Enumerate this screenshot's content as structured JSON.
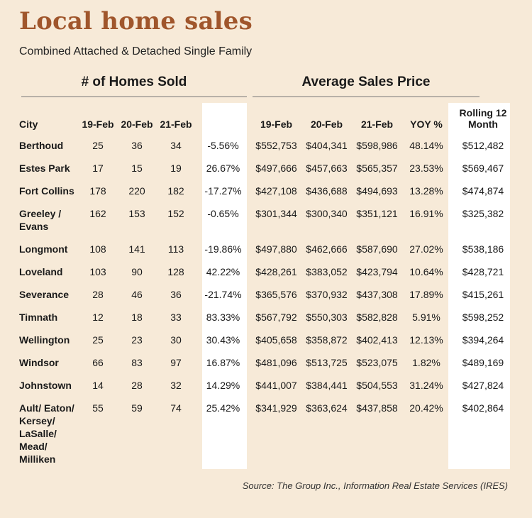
{
  "title": "Local home sales",
  "subtitle": "Combined Attached & Detached Single Family",
  "groups": {
    "homes_sold": "# of Homes Sold",
    "avg_price": "Average Sales Price"
  },
  "columns": {
    "city": "City",
    "h19": "19-Feb",
    "h20": "20-Feb",
    "h21": "21-Feb",
    "yoy1": "",
    "p19": "19-Feb",
    "p20": "20-Feb",
    "p21": "21-Feb",
    "yoy2": "YOY %",
    "roll": "Rolling 12 Month"
  },
  "rows": [
    {
      "city": "Berthoud",
      "h19": "25",
      "h20": "36",
      "h21": "34",
      "yoy1": "-5.56%",
      "p19": "$552,753",
      "p20": "$404,341",
      "p21": "$598,986",
      "yoy2": "48.14%",
      "roll": "$512,482"
    },
    {
      "city": "Estes Park",
      "h19": "17",
      "h20": "15",
      "h21": "19",
      "yoy1": "26.67%",
      "p19": "$497,666",
      "p20": "$457,663",
      "p21": "$565,357",
      "yoy2": "23.53%",
      "roll": "$569,467"
    },
    {
      "city": "Fort Collins",
      "h19": "178",
      "h20": "220",
      "h21": "182",
      "yoy1": "-17.27%",
      "p19": "$427,108",
      "p20": "$436,688",
      "p21": "$494,693",
      "yoy2": "13.28%",
      "roll": "$474,874"
    },
    {
      "city": "Greeley / Evans",
      "h19": "162",
      "h20": "153",
      "h21": "152",
      "yoy1": "-0.65%",
      "p19": "$301,344",
      "p20": "$300,340",
      "p21": "$351,121",
      "yoy2": "16.91%",
      "roll": "$325,382"
    },
    {
      "city": "Longmont",
      "h19": "108",
      "h20": "141",
      "h21": "113",
      "yoy1": "-19.86%",
      "p19": "$497,880",
      "p20": "$462,666",
      "p21": "$587,690",
      "yoy2": "27.02%",
      "roll": "$538,186"
    },
    {
      "city": "Loveland",
      "h19": "103",
      "h20": "90",
      "h21": "128",
      "yoy1": "42.22%",
      "p19": "$428,261",
      "p20": "$383,052",
      "p21": "$423,794",
      "yoy2": "10.64%",
      "roll": "$428,721"
    },
    {
      "city": "Severance",
      "h19": "28",
      "h20": "46",
      "h21": "36",
      "yoy1": "-21.74%",
      "p19": "$365,576",
      "p20": "$370,932",
      "p21": "$437,308",
      "yoy2": "17.89%",
      "roll": "$415,261"
    },
    {
      "city": "Timnath",
      "h19": "12",
      "h20": "18",
      "h21": "33",
      "yoy1": "83.33%",
      "p19": "$567,792",
      "p20": "$550,303",
      "p21": "$582,828",
      "yoy2": "5.91%",
      "roll": "$598,252"
    },
    {
      "city": "Wellington",
      "h19": "25",
      "h20": "23",
      "h21": "30",
      "yoy1": "30.43%",
      "p19": "$405,658",
      "p20": "$358,872",
      "p21": "$402,413",
      "yoy2": "12.13%",
      "roll": "$394,264"
    },
    {
      "city": "Windsor",
      "h19": "66",
      "h20": "83",
      "h21": "97",
      "yoy1": "16.87%",
      "p19": "$481,096",
      "p20": "$513,725",
      "p21": "$523,075",
      "yoy2": "1.82%",
      "roll": "$489,169"
    },
    {
      "city": "Johnstown",
      "h19": "14",
      "h20": "28",
      "h21": "32",
      "yoy1": "14.29%",
      "p19": "$441,007",
      "p20": "$384,441",
      "p21": "$504,553",
      "yoy2": "31.24%",
      "roll": "$427,824"
    },
    {
      "city": "Ault/ Eaton/ Kersey/ LaSalle/ Mead/ Milliken",
      "h19": "55",
      "h20": "59",
      "h21": "74",
      "yoy1": "25.42%",
      "p19": "$341,929",
      "p20": "$363,624",
      "p21": "$437,858",
      "yoy2": "20.42%",
      "roll": "$402,864"
    }
  ],
  "source": "Source: The Group Inc., Information Real Estate Services (IRES)",
  "colors": {
    "title": "#a0562c",
    "background": "#f7ead8",
    "highlight_column": "#ffffff"
  }
}
